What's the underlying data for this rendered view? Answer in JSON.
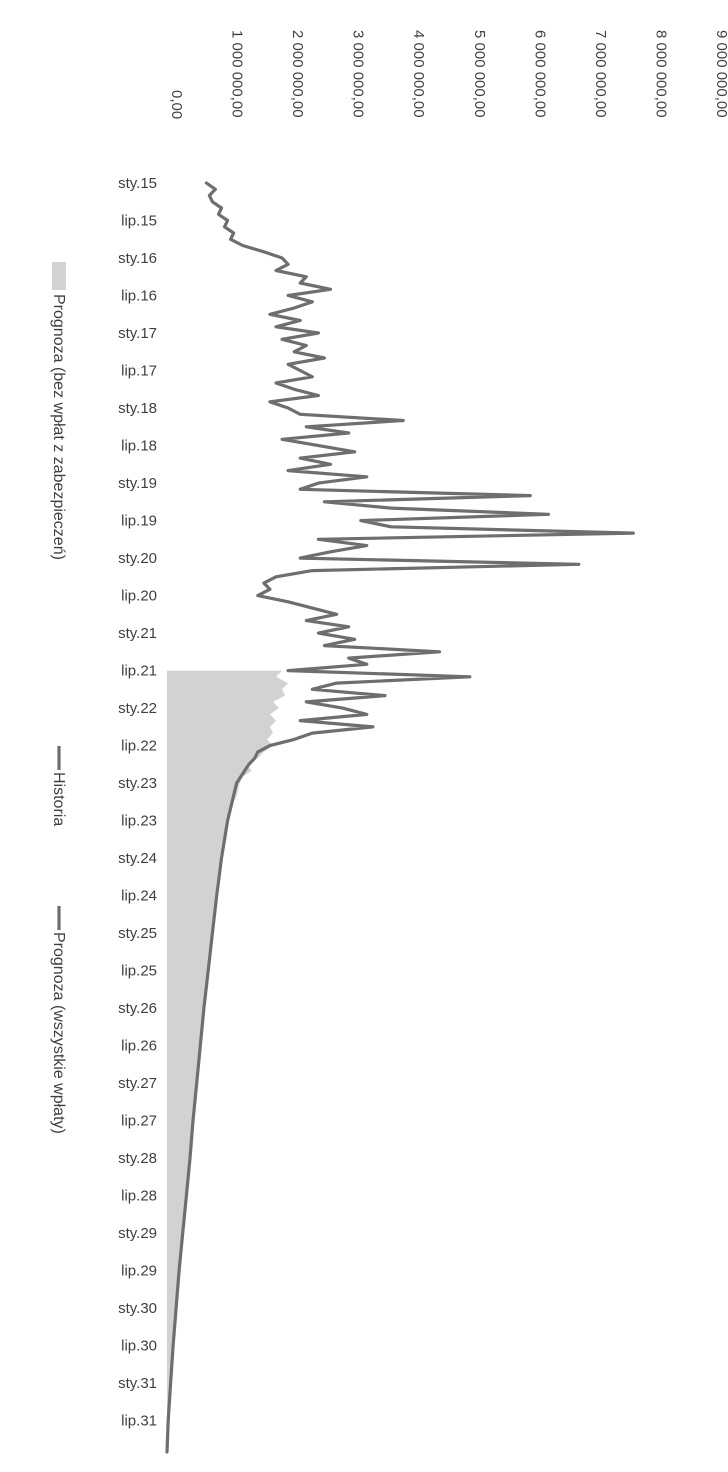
{
  "chart_data": {
    "type": "area",
    "orientation": "rotated-90-clockwise",
    "title": "",
    "xlabel": "",
    "ylabel": "",
    "ylim": [
      0,
      9000000
    ],
    "y_ticks": [
      "0,00",
      "1 000 000,00",
      "2 000 000,00",
      "3 000 000,00",
      "4 000 000,00",
      "5 000 000,00",
      "6 000 000,00",
      "7 000 000,00",
      "8 000 000,00",
      "9 000 000,00"
    ],
    "x_ticks": [
      "sty.15",
      "lip.15",
      "sty.16",
      "lip.16",
      "sty.17",
      "lip.17",
      "sty.18",
      "lip.18",
      "sty.19",
      "lip.19",
      "sty.20",
      "lip.20",
      "sty.21",
      "lip.21",
      "sty.22",
      "lip.22",
      "sty.23",
      "lip.23",
      "sty.24",
      "lip.24",
      "sty.25",
      "lip.25",
      "sty.26",
      "lip.26",
      "sty.27",
      "lip.27",
      "sty.28",
      "lip.28",
      "sty.29",
      "lip.29",
      "sty.30",
      "lip.30",
      "sty.31",
      "lip.31"
    ],
    "legend_position": "left (rotated)",
    "grid": false,
    "series": [
      {
        "name": "Prognoza (bez wpłat z zabezpieczeń)",
        "kind": "area",
        "color": "#d2d2d2",
        "x": [
          "2021-07",
          "2021-08",
          "2021-09",
          "2021-10",
          "2021-11",
          "2021-12",
          "2022-01",
          "2022-02",
          "2022-03",
          "2022-04",
          "2022-05",
          "2022-06",
          "2022-07",
          "2022-08",
          "2022-09",
          "2022-10",
          "2022-11",
          "2022-12",
          "2023-01",
          "2023-03",
          "2023-05",
          "2023-07",
          "2023-09",
          "2024-01",
          "2024-07",
          "2025-01",
          "2025-07",
          "2026-01",
          "2026-07",
          "2027-01",
          "2027-07",
          "2028-01",
          "2028-07",
          "2029-01",
          "2029-07",
          "2030-01",
          "2030-07",
          "2031-01",
          "2031-07",
          "2031-12"
        ],
        "values": [
          1900000,
          1800000,
          2000000,
          1900000,
          1950000,
          1750000,
          1850000,
          1700000,
          1800000,
          1700000,
          1750000,
          1650000,
          1750000,
          1600000,
          1500000,
          1300000,
          1400000,
          1250000,
          1200000,
          1150000,
          1050000,
          1000000,
          950000,
          900000,
          820000,
          750000,
          680000,
          610000,
          550000,
          490000,
          430000,
          380000,
          320000,
          260000,
          200000,
          150000,
          100000,
          60000,
          20000,
          0
        ]
      },
      {
        "name": "Historia",
        "kind": "line",
        "color": "#6e6e6e",
        "x": [
          "2015-01",
          "2015-02",
          "2015-03",
          "2015-04",
          "2015-05",
          "2015-06",
          "2015-07",
          "2015-08",
          "2015-09",
          "2015-10",
          "2015-11",
          "2015-12",
          "2016-01",
          "2016-02",
          "2016-03",
          "2016-04",
          "2016-05",
          "2016-06",
          "2016-07",
          "2016-08",
          "2016-09",
          "2016-10",
          "2016-11",
          "2016-12",
          "2017-01",
          "2017-02",
          "2017-03",
          "2017-04",
          "2017-05",
          "2017-06",
          "2017-07",
          "2017-08",
          "2017-09",
          "2017-10",
          "2017-11",
          "2017-12",
          "2018-01",
          "2018-02",
          "2018-03",
          "2018-04",
          "2018-05",
          "2018-06",
          "2018-07",
          "2018-08",
          "2018-09",
          "2018-10",
          "2018-11",
          "2018-12",
          "2019-01",
          "2019-02",
          "2019-03",
          "2019-04",
          "2019-05",
          "2019-06",
          "2019-07",
          "2019-08",
          "2019-09",
          "2019-10",
          "2019-11",
          "2019-12",
          "2020-01",
          "2020-02",
          "2020-03",
          "2020-04",
          "2020-05",
          "2020-06",
          "2020-07",
          "2020-08",
          "2020-09",
          "2020-10",
          "2020-11",
          "2020-12",
          "2021-01",
          "2021-02",
          "2021-03",
          "2021-04",
          "2021-05",
          "2021-06",
          "2021-07",
          "2021-08",
          "2021-09",
          "2021-10",
          "2021-11",
          "2021-12",
          "2022-01",
          "2022-02",
          "2022-03",
          "2022-04",
          "2022-05",
          "2022-06",
          "2022-07",
          "2022-08",
          "2022-09",
          "2022-10"
        ],
        "values": [
          650000,
          800000,
          700000,
          750000,
          900000,
          850000,
          1000000,
          950000,
          1100000,
          1050000,
          1250000,
          1600000,
          1900000,
          2000000,
          1800000,
          2300000,
          2200000,
          2700000,
          2000000,
          2400000,
          2100000,
          1700000,
          2200000,
          1800000,
          2500000,
          1900000,
          2300000,
          2100000,
          2600000,
          2000000,
          2200000,
          2400000,
          1800000,
          2100000,
          2500000,
          1700000,
          2000000,
          2200000,
          3900000,
          2300000,
          3000000,
          1900000,
          2500000,
          3100000,
          2200000,
          2700000,
          2000000,
          3300000,
          2500000,
          2200000,
          6000000,
          2600000,
          3700000,
          6300000,
          3200000,
          3700000,
          7700000,
          2500000,
          3300000,
          2700000,
          2200000,
          6800000,
          2400000,
          1800000,
          1600000,
          1700000,
          1500000,
          2000000,
          2400000,
          2800000,
          2300000,
          3000000,
          2500000,
          3100000,
          2600000,
          4500000,
          3000000,
          3300000,
          2000000,
          5000000,
          2800000,
          2400000,
          3600000,
          2300000,
          2900000,
          3300000,
          2200000,
          3400000,
          2400000,
          2100000,
          1700000,
          1500000,
          1450000,
          1350000
        ]
      },
      {
        "name": "Prognoza (wszystkie wpłaty)",
        "kind": "line",
        "color": "#6e6e6e",
        "x": [
          "2022-10",
          "2023-01",
          "2023-07",
          "2024-01",
          "2024-07",
          "2025-01",
          "2025-07",
          "2026-01",
          "2026-07",
          "2027-01",
          "2027-07",
          "2028-01",
          "2028-07",
          "2029-01",
          "2029-07",
          "2030-01",
          "2030-07",
          "2031-01",
          "2031-07",
          "2031-12"
        ],
        "values": [
          1350000,
          1150000,
          1000000,
          900000,
          820000,
          750000,
          680000,
          610000,
          550000,
          490000,
          430000,
          380000,
          320000,
          260000,
          200000,
          150000,
          100000,
          60000,
          20000,
          0
        ]
      }
    ]
  },
  "colors": {
    "background": "#ffffff",
    "text": "#3f3f3f",
    "history_line": "#6e6e6e",
    "forecast_area": "#d2d2d2"
  }
}
